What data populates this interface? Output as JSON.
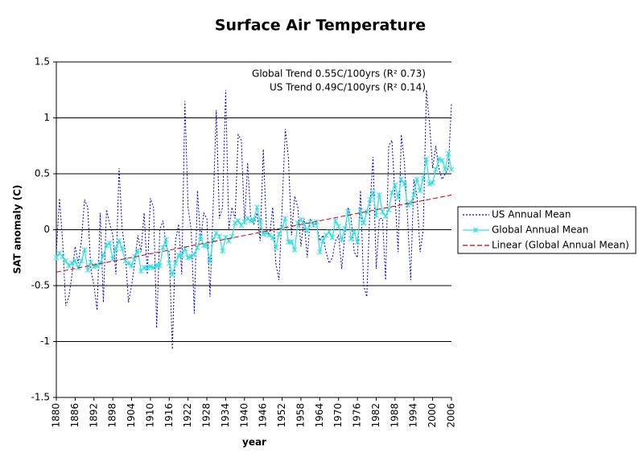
{
  "chart_data": {
    "type": "line",
    "title": "Surface Air Temperature",
    "xlabel": "year",
    "ylabel": "SAT anomaly (C)",
    "annotations": [
      "Global Trend 0.55C/100yrs (R² 0.73)",
      "US Trend 0.49C/100yrs (R² 0.14)"
    ],
    "x": [
      1880,
      1881,
      1882,
      1883,
      1884,
      1885,
      1886,
      1887,
      1888,
      1889,
      1890,
      1891,
      1892,
      1893,
      1894,
      1895,
      1896,
      1897,
      1898,
      1899,
      1900,
      1901,
      1902,
      1903,
      1904,
      1905,
      1906,
      1907,
      1908,
      1909,
      1910,
      1911,
      1912,
      1913,
      1914,
      1915,
      1916,
      1917,
      1918,
      1919,
      1920,
      1921,
      1922,
      1923,
      1924,
      1925,
      1926,
      1927,
      1928,
      1929,
      1930,
      1931,
      1932,
      1933,
      1934,
      1935,
      1936,
      1937,
      1938,
      1939,
      1940,
      1941,
      1942,
      1943,
      1944,
      1945,
      1946,
      1947,
      1948,
      1949,
      1950,
      1951,
      1952,
      1953,
      1954,
      1955,
      1956,
      1957,
      1958,
      1959,
      1960,
      1961,
      1962,
      1963,
      1964,
      1965,
      1966,
      1967,
      1968,
      1969,
      1970,
      1971,
      1972,
      1973,
      1974,
      1975,
      1976,
      1977,
      1978,
      1979,
      1980,
      1981,
      1982,
      1983,
      1984,
      1985,
      1986,
      1987,
      1988,
      1989,
      1990,
      1991,
      1992,
      1993,
      1994,
      1995,
      1996,
      1997,
      1998,
      1999,
      2000,
      2001,
      2002,
      2003,
      2004,
      2005,
      2006
    ],
    "series": [
      {
        "name": "US Annual Mean",
        "color": "#0000cc",
        "style": "dotted",
        "values": [
          -0.2,
          0.28,
          -0.1,
          -0.68,
          -0.6,
          -0.4,
          -0.15,
          -0.3,
          -0.1,
          0.27,
          0.2,
          -0.35,
          -0.5,
          -0.72,
          0.15,
          -0.65,
          0.18,
          0.05,
          -0.05,
          -0.4,
          0.55,
          0.0,
          -0.2,
          -0.65,
          -0.5,
          -0.3,
          -0.05,
          -0.2,
          0.15,
          -0.4,
          0.28,
          0.2,
          -0.88,
          0.0,
          0.08,
          -0.15,
          -0.2,
          -1.07,
          -0.1,
          0.05,
          -0.4,
          1.15,
          0.2,
          0.0,
          -0.75,
          0.35,
          -0.1,
          0.15,
          0.1,
          -0.6,
          0.2,
          1.07,
          0.1,
          0.2,
          1.25,
          0.0,
          0.2,
          0.1,
          0.85,
          0.8,
          0.05,
          0.6,
          0.1,
          0.05,
          0.15,
          -0.1,
          0.72,
          0.0,
          -0.05,
          0.2,
          -0.3,
          -0.45,
          0.2,
          0.9,
          0.65,
          -0.05,
          0.3,
          0.2,
          -0.15,
          0.1,
          -0.25,
          0.1,
          0.05,
          0.05,
          -0.1,
          -0.05,
          -0.2,
          -0.3,
          -0.25,
          -0.1,
          -0.05,
          -0.35,
          -0.05,
          0.2,
          0.1,
          -0.2,
          -0.25,
          0.35,
          -0.5,
          -0.6,
          0.2,
          0.65,
          -0.35,
          0.1,
          0.1,
          -0.45,
          0.75,
          0.8,
          0.3,
          -0.2,
          0.85,
          0.6,
          0.1,
          -0.45,
          0.45,
          0.3,
          -0.2,
          0.0,
          1.25,
          0.95,
          0.55,
          0.75,
          0.55,
          0.45,
          0.5,
          0.55,
          1.13
        ]
      },
      {
        "name": "Global Annual Mean",
        "color": "#33e0e0",
        "style": "solid",
        "values": [
          -0.25,
          -0.21,
          -0.24,
          -0.28,
          -0.32,
          -0.3,
          -0.28,
          -0.34,
          -0.28,
          -0.18,
          -0.36,
          -0.29,
          -0.33,
          -0.32,
          -0.3,
          -0.23,
          -0.14,
          -0.12,
          -0.26,
          -0.17,
          -0.1,
          -0.17,
          -0.28,
          -0.3,
          -0.32,
          -0.24,
          -0.19,
          -0.37,
          -0.34,
          -0.34,
          -0.33,
          -0.34,
          -0.32,
          -0.32,
          -0.16,
          -0.09,
          -0.3,
          -0.4,
          -0.3,
          -0.23,
          -0.23,
          -0.17,
          -0.25,
          -0.24,
          -0.22,
          -0.16,
          -0.06,
          -0.14,
          -0.14,
          -0.28,
          -0.09,
          -0.03,
          -0.06,
          -0.19,
          -0.07,
          -0.1,
          -0.06,
          0.06,
          0.08,
          0.04,
          0.07,
          0.1,
          0.08,
          0.09,
          0.2,
          0.07,
          -0.04,
          -0.03,
          -0.05,
          -0.07,
          -0.16,
          -0.04,
          0.02,
          0.1,
          -0.11,
          -0.11,
          -0.18,
          0.06,
          0.09,
          0.05,
          -0.01,
          0.07,
          0.04,
          0.07,
          -0.2,
          -0.1,
          -0.05,
          -0.02,
          -0.07,
          0.08,
          0.03,
          -0.09,
          0.01,
          0.16,
          -0.08,
          -0.02,
          -0.11,
          0.17,
          0.06,
          0.16,
          0.27,
          0.33,
          0.13,
          0.31,
          0.16,
          0.12,
          0.18,
          0.33,
          0.4,
          0.29,
          0.45,
          0.41,
          0.22,
          0.24,
          0.31,
          0.45,
          0.35,
          0.46,
          0.63,
          0.41,
          0.42,
          0.54,
          0.63,
          0.62,
          0.54,
          0.68,
          0.54
        ]
      }
    ],
    "trend": {
      "name": "Linear (Global Annual Mean)",
      "color": "#cc0000",
      "x": [
        1880,
        2006
      ],
      "values": [
        -0.38,
        0.31
      ]
    },
    "xlim": [
      1880,
      2006
    ],
    "xticks": [
      1880,
      1886,
      1892,
      1898,
      1904,
      1910,
      1916,
      1922,
      1928,
      1934,
      1940,
      1946,
      1952,
      1958,
      1964,
      1970,
      1976,
      1982,
      1988,
      1994,
      2000,
      2006
    ],
    "ylim": [
      -1.5,
      1.5
    ],
    "yticks": [
      -1.5,
      -1,
      -0.5,
      0,
      0.5,
      1,
      1.5
    ],
    "grid": true,
    "legend": "right"
  }
}
